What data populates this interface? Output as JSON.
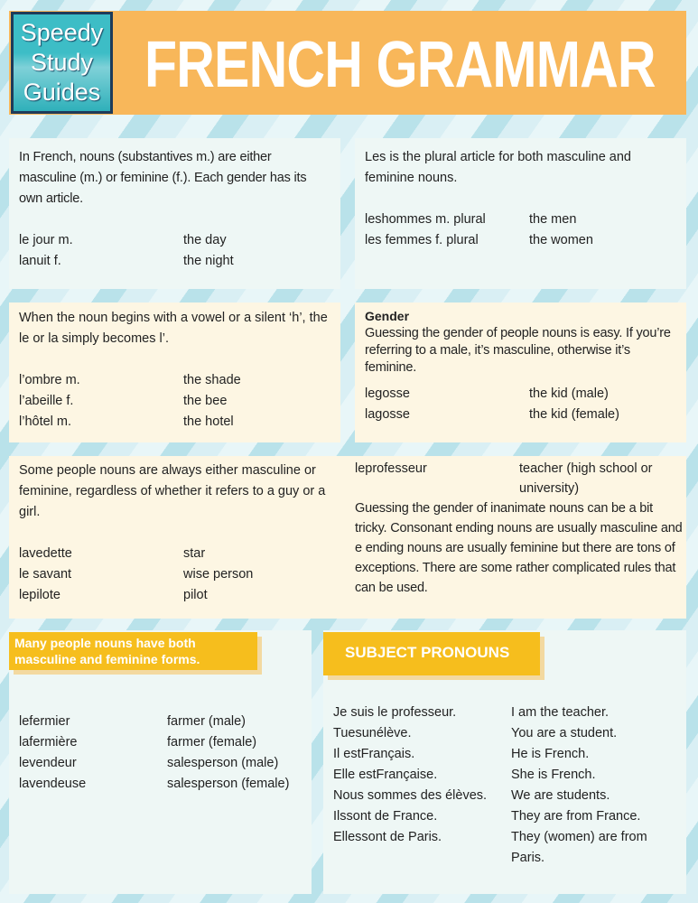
{
  "header": {
    "logo": [
      "Speedy",
      "Study",
      "Guides"
    ],
    "title": "FRENCH GRAMMAR"
  },
  "p1": {
    "text": "In French, nouns (substantives m.) are either masculine (m.) or feminine (f.). Each gender has its own article.",
    "rows": [
      [
        "le jour m.",
        "the day"
      ],
      [
        "lanuit  f.",
        "the night"
      ]
    ]
  },
  "p2": {
    "text": "Les is the plural article for both masculine and feminine nouns.",
    "rows": [
      [
        "leshommes m. plural",
        "the men"
      ],
      [
        "les femmes f. plural",
        "the women"
      ]
    ]
  },
  "p3": {
    "text": "When the noun begins with a vowel or a silent ‘h’, the le or la simply becomes l’.",
    "rows": [
      [
        "l’ombre m.",
        "the shade"
      ],
      [
        "l’abeille f.",
        "the bee"
      ],
      [
        "l’hôtel m.",
        "the hotel"
      ]
    ]
  },
  "p4": {
    "heading": "Gender",
    "text": "Guessing the gender of people nouns is easy. If you’re referring to a male, it’s masculine, otherwise it’s feminine.",
    "rows": [
      [
        "legosse",
        "the kid (male)"
      ],
      [
        "lagosse",
        "the kid (female)"
      ]
    ]
  },
  "p5": {
    "text": "Some people nouns are always either masculine or feminine, regardless of whether it refers to a guy or a girl.",
    "rows": [
      [
        "lavedette",
        "star"
      ],
      [
        "le savant",
        "wise person"
      ],
      [
        "lepilote",
        "pilot"
      ]
    ],
    "right_row": [
      "leprofesseur",
      "teacher (high school or university)"
    ],
    "right_text": "Guessing the gender of inanimate nouns can be a bit tricky. Consonant ending nouns are usually masculine and e ending nouns are usually feminine but there are tons of exceptions. There are some rather complicated rules that can be used."
  },
  "p6": {
    "heading": "Many people nouns have both masculine and feminine forms.",
    "rows": [
      [
        "lefermier",
        "farmer (male)"
      ],
      [
        "lafermière",
        "farmer (female)"
      ],
      [
        "levendeur",
        "salesperson (male)"
      ],
      [
        "lavendeuse",
        "salesperson (female)"
      ]
    ]
  },
  "p7": {
    "heading": "SUBJECT PRONOUNS",
    "rows": [
      [
        "Je suis le professeur.",
        "I am the teacher."
      ],
      [
        "Tuesunélève.",
        "You are a student."
      ],
      [
        "Il estFrançais.",
        "He is French."
      ],
      [
        "Elle estFrançaise.",
        "She is French."
      ],
      [
        "Nous sommes des élèves.",
        "We are students."
      ],
      [
        "Ilssont de France.",
        "They are from France."
      ],
      [
        "Ellessont de Paris.",
        "They (women) are from Paris."
      ]
    ]
  }
}
